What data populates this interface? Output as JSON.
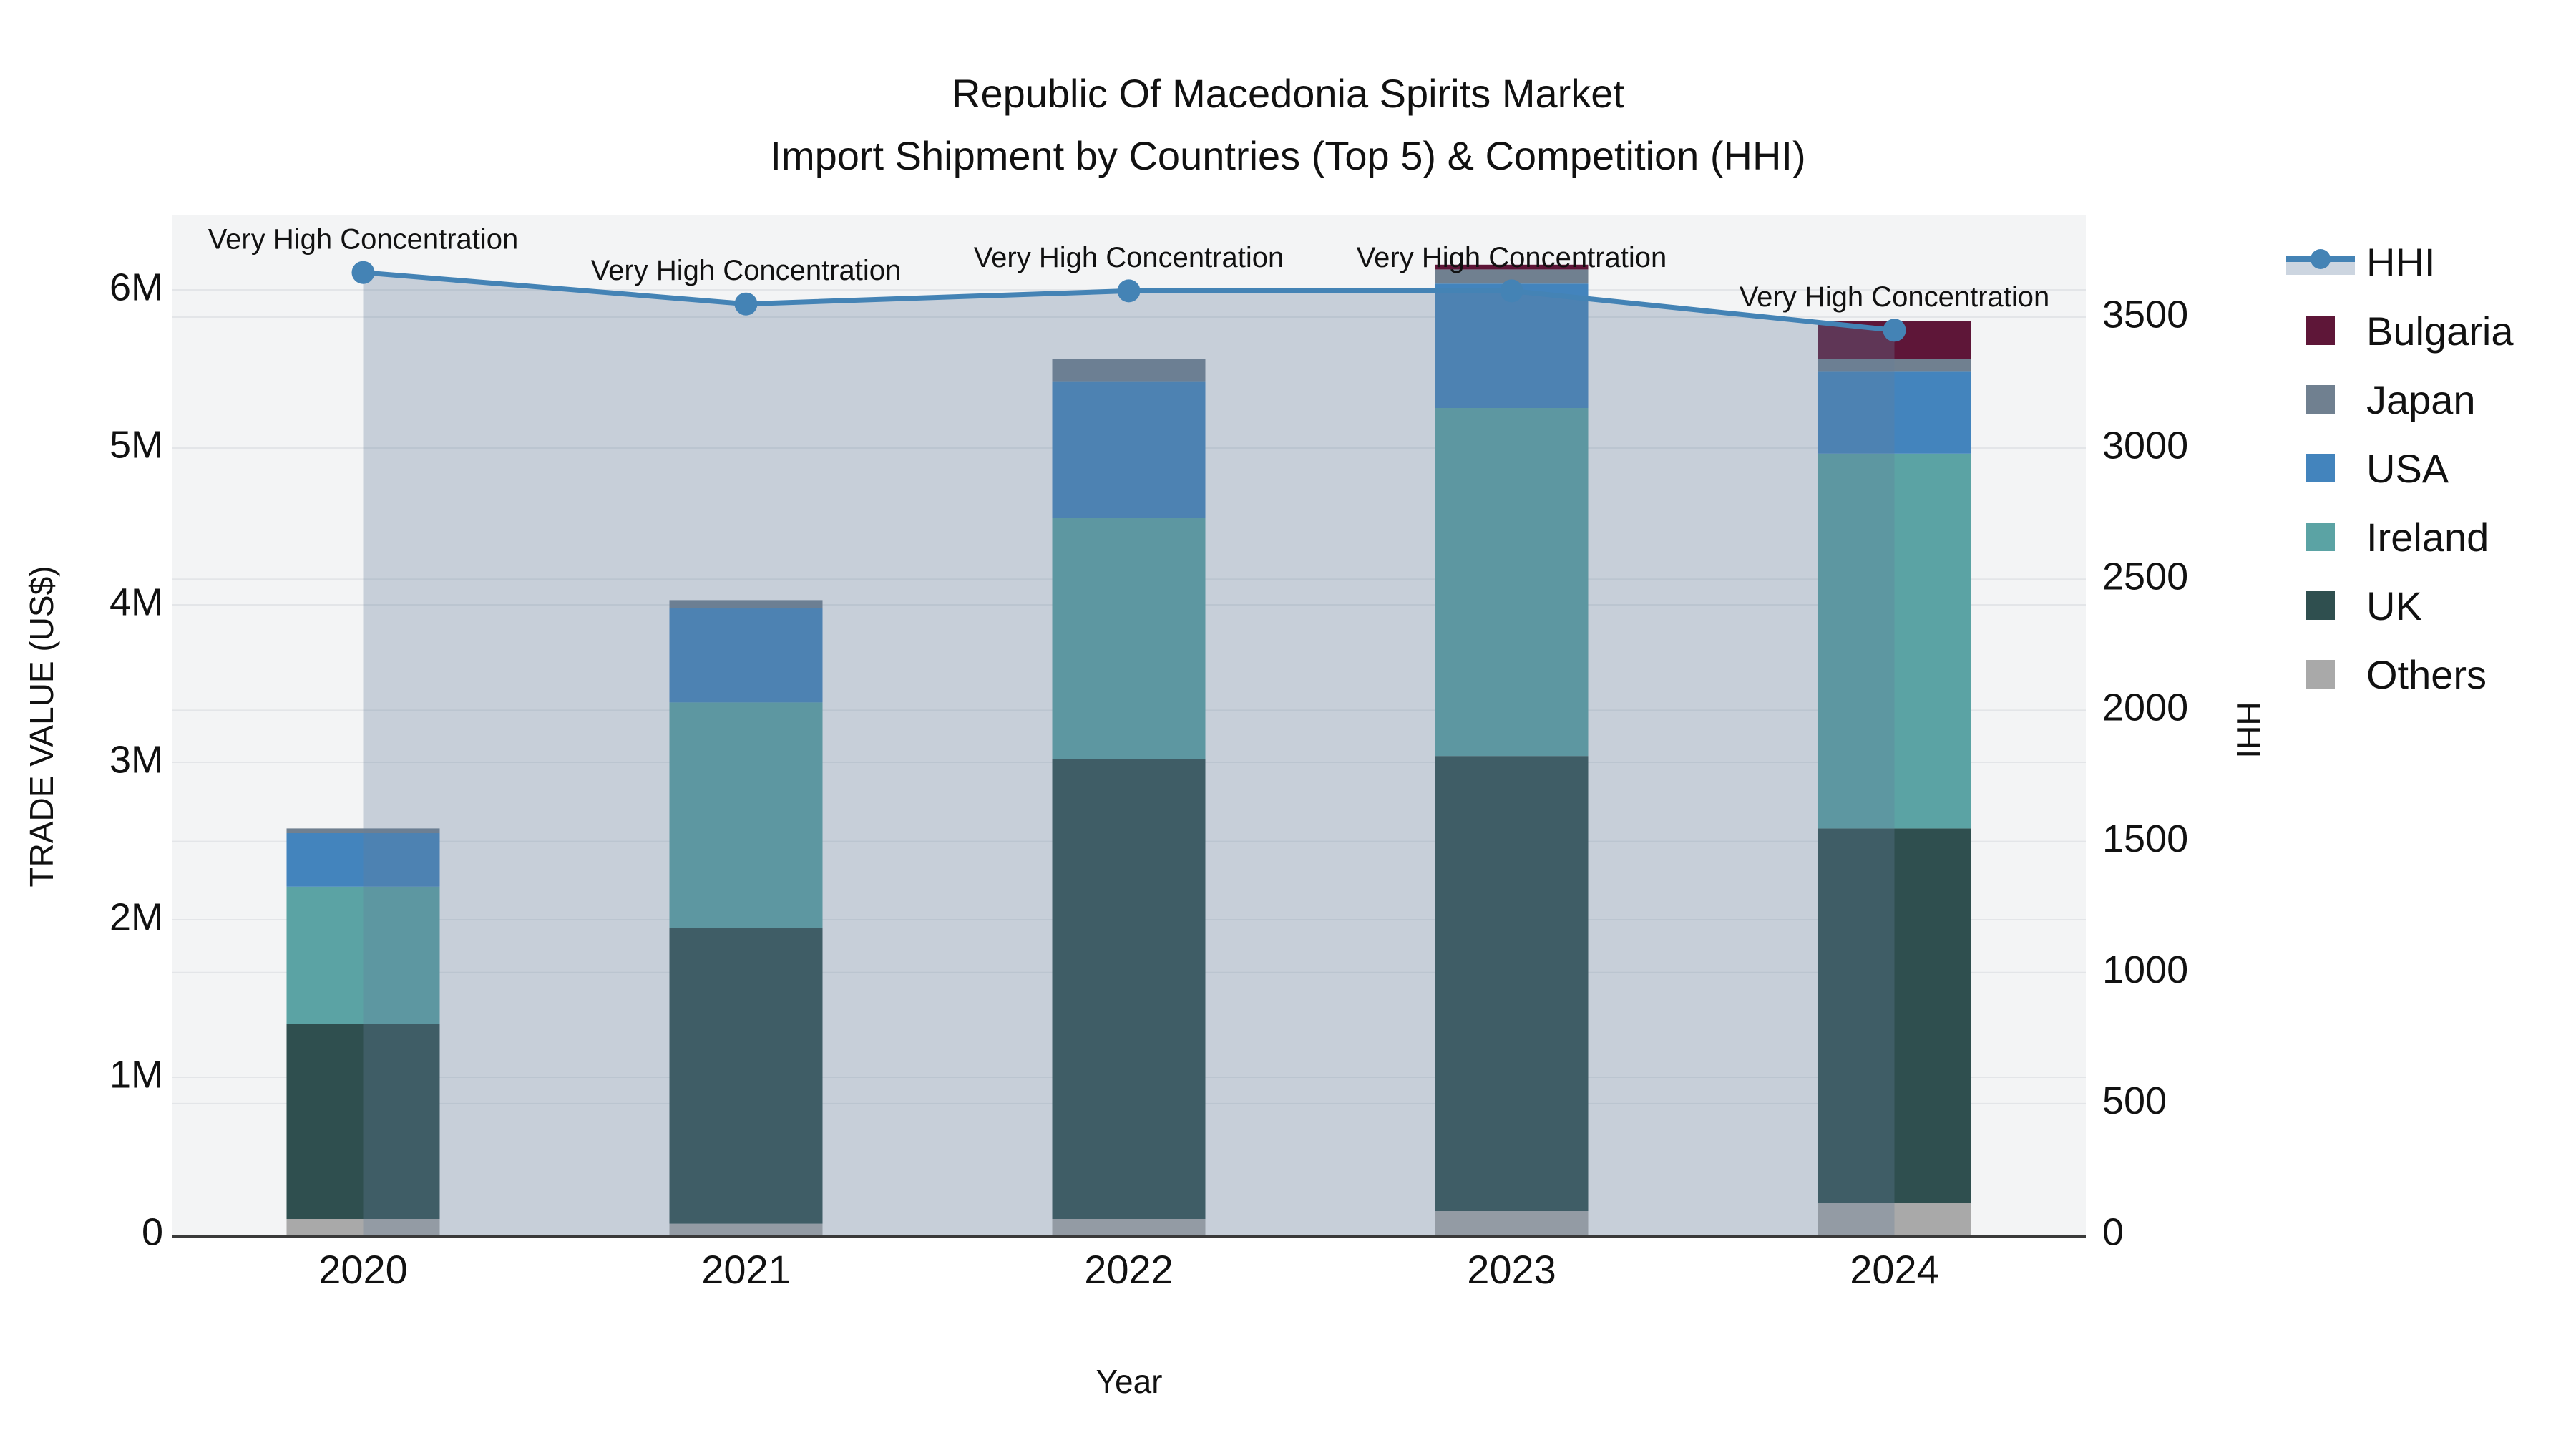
{
  "title": {
    "line1": "Republic Of Macedonia Spirits Market",
    "line2": "Import Shipment by Countries (Top 5) & Competition (HHI)"
  },
  "axes": {
    "left": {
      "title": "TRADE VALUE (US$)",
      "tick_labels": [
        "0",
        "1M",
        "2M",
        "3M",
        "4M",
        "5M",
        "6M"
      ],
      "tick_values": [
        0,
        1,
        2,
        3,
        4,
        5,
        6
      ]
    },
    "right": {
      "title": "HHI",
      "tick_labels": [
        "0",
        "500",
        "1000",
        "1500",
        "2000",
        "2500",
        "3000",
        "3500"
      ],
      "tick_values": [
        0,
        500,
        1000,
        1500,
        2000,
        2500,
        3000,
        3500
      ]
    },
    "x": {
      "title": "Year",
      "tick_labels": [
        "2020",
        "2021",
        "2022",
        "2023",
        "2024"
      ]
    }
  },
  "annotation_text": "Very High Concentration",
  "colors": {
    "plot_background": "#f3f4f5",
    "gridline": "#e3e5e8",
    "axis_line": "#3a3a3a",
    "hhi_line": "#4483b5",
    "hhi_fill": "rgba(100,125,155,0.31)",
    "legend_band": "#ccd5e0"
  },
  "legend": {
    "items": [
      {
        "label": "HHI",
        "type": "line",
        "color": "#4483b5"
      },
      {
        "label": "Bulgaria",
        "type": "swatch",
        "color": "#5e1638"
      },
      {
        "label": "Japan",
        "type": "swatch",
        "color": "#708090"
      },
      {
        "label": "USA",
        "type": "swatch",
        "color": "#4384bd"
      },
      {
        "label": "Ireland",
        "type": "swatch",
        "color": "#5ba3a4"
      },
      {
        "label": "UK",
        "type": "swatch",
        "color": "#2f4f4f"
      },
      {
        "label": "Others",
        "type": "swatch",
        "color": "#a9a9a9"
      }
    ]
  },
  "chart_data": {
    "type": "bar",
    "subtype": "stacked-bars-with-line-overlay",
    "title": "Republic Of Macedonia Spirits Market — Import Shipment by Countries (Top 5) & Competition (HHI)",
    "categories": [
      "2020",
      "2021",
      "2022",
      "2023",
      "2024"
    ],
    "xlabel": "Year",
    "ylabel": "TRADE VALUE (US$)",
    "y2label": "HHI",
    "ylim_millions": [
      0,
      6.48
    ],
    "y2lim": [
      0,
      3900
    ],
    "grid": true,
    "legend_position": "right",
    "values_unit": "US$ millions (left axis), HHI index (right axis)",
    "stack_order_bottom_to_top": [
      "Others",
      "UK",
      "Ireland",
      "USA",
      "Japan",
      "Bulgaria"
    ],
    "series": [
      {
        "name": "Others",
        "color": "#a9a9a9",
        "values": [
          0.1,
          0.07,
          0.1,
          0.15,
          0.2
        ]
      },
      {
        "name": "UK",
        "color": "#2f4f4f",
        "values": [
          1.24,
          1.88,
          2.92,
          2.89,
          2.38
        ]
      },
      {
        "name": "Ireland",
        "color": "#5ba3a4",
        "values": [
          0.87,
          1.43,
          1.53,
          2.21,
          2.38
        ]
      },
      {
        "name": "USA",
        "color": "#4384bd",
        "values": [
          0.34,
          0.6,
          0.87,
          0.79,
          0.52
        ]
      },
      {
        "name": "Japan",
        "color": "#708090",
        "values": [
          0.03,
          0.05,
          0.14,
          0.09,
          0.08
        ]
      },
      {
        "name": "Bulgaria",
        "color": "#5e1638",
        "values": [
          0.0,
          0.0,
          0.0,
          0.03,
          0.24
        ]
      }
    ],
    "bar_totals_millions": [
      2.58,
      4.03,
      5.56,
      6.16,
      5.8
    ],
    "line_series": {
      "name": "HHI",
      "color": "#4483b5",
      "axis": "right",
      "values": [
        3670,
        3550,
        3600,
        3600,
        3450
      ]
    },
    "annotations": [
      {
        "text": "Very High Concentration",
        "category": "2020"
      },
      {
        "text": "Very High Concentration",
        "category": "2021"
      },
      {
        "text": "Very High Concentration",
        "category": "2022"
      },
      {
        "text": "Very High Concentration",
        "category": "2023"
      },
      {
        "text": "Very High Concentration",
        "category": "2024"
      }
    ]
  }
}
